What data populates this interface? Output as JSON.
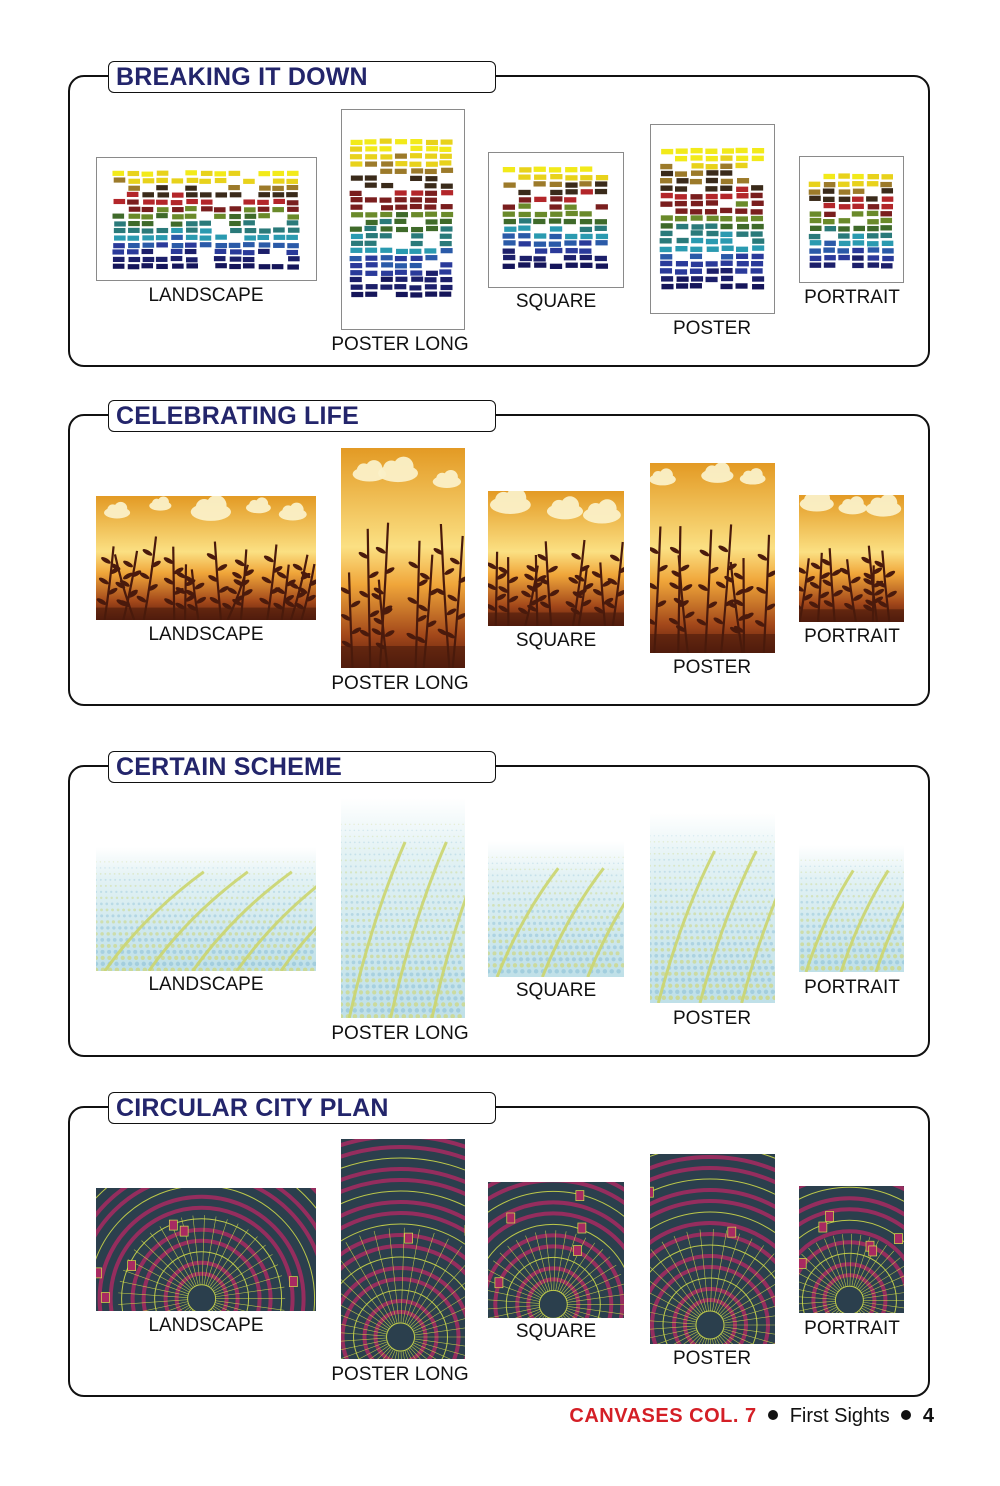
{
  "sections": [
    {
      "title": "BREAKING IT DOWN",
      "art": "swatches-icon",
      "labels": [
        "LANDSCAPE",
        "POSTER LONG",
        "SQUARE",
        "POSTER",
        "PORTRAIT"
      ]
    },
    {
      "title": "CELEBRATING LIFE",
      "art": "plant-silhouette-icon",
      "labels": [
        "LANDSCAPE",
        "POSTER LONG",
        "SQUARE",
        "POSTER",
        "PORTRAIT"
      ]
    },
    {
      "title": "CERTAIN SCHEME",
      "art": "dot-field-icon",
      "labels": [
        "LANDSCAPE",
        "POSTER LONG",
        "SQUARE",
        "POSTER",
        "PORTRAIT"
      ]
    },
    {
      "title": "CIRCULAR CITY PLAN",
      "art": "city-plan-icon",
      "labels": [
        "LANDSCAPE",
        "POSTER LONG",
        "SQUARE",
        "POSTER",
        "PORTRAIT"
      ]
    }
  ],
  "footer": {
    "brand": "CANVASES COL. 7",
    "subtitle": "First Sights",
    "page": "4"
  },
  "colors": {
    "title": "#23256b",
    "brand": "#d41f26",
    "border": "#111111"
  }
}
